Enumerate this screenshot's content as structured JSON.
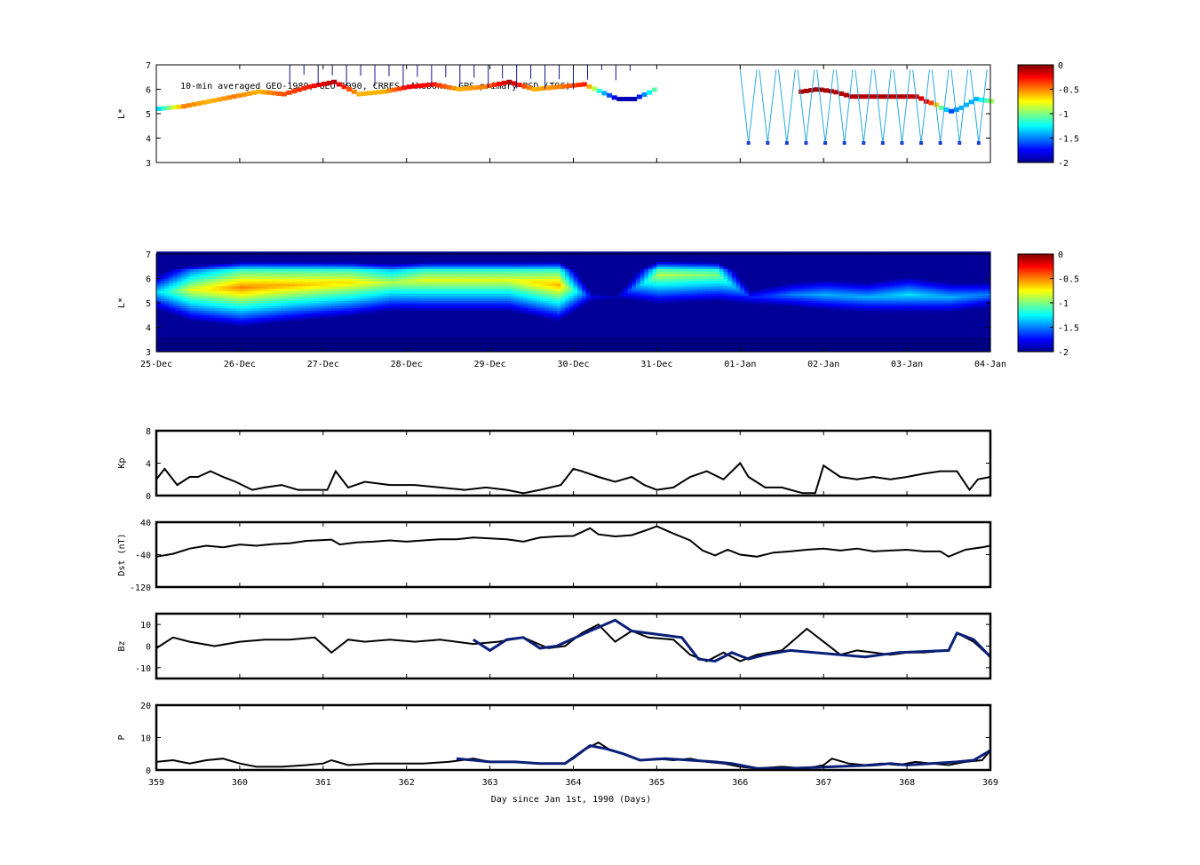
{
  "chart_data": [
    {
      "type": "heatmap",
      "panel": "observed_psd",
      "title": "10-min averaged GEO-1989, GEO-1990, CRRES, Akebono, GPS primary PSD (T96)",
      "ylabel": "L*",
      "ylim": [
        3,
        7
      ],
      "yticks": [
        "3",
        "4",
        "5",
        "6",
        "7"
      ],
      "colorbar": {
        "range": [
          -2,
          0
        ],
        "ticks": [
          "0",
          "-0.5",
          "-1",
          "-1.5",
          "-2"
        ]
      },
      "x_range_days": [
        359,
        369
      ],
      "tracks": [
        {
          "x": [
            359.0,
            359.3,
            359.6,
            359.9,
            360.2,
            360.5,
            360.8,
            361.1,
            361.4,
            361.7,
            362.0,
            362.3,
            362.6,
            362.9,
            363.2,
            363.5,
            363.8,
            364.1,
            364.3,
            364.5,
            364.7,
            364.9,
            365.0
          ],
          "y": [
            5.2,
            5.3,
            5.5,
            5.7,
            5.9,
            5.8,
            6.1,
            6.3,
            5.8,
            5.9,
            6.1,
            6.2,
            6.0,
            6.1,
            6.3,
            6.0,
            6.1,
            6.2,
            5.9,
            5.6,
            5.6,
            5.9,
            6.1
          ],
          "v": [
            -1.3,
            -0.5,
            -0.6,
            -0.5,
            -0.6,
            -0.4,
            -0.3,
            -0.1,
            -0.6,
            -0.6,
            -0.2,
            -0.3,
            -0.6,
            -0.5,
            -0.1,
            -0.6,
            -0.5,
            -0.3,
            -1.3,
            -1.9,
            -1.9,
            -1.2,
            -0.9
          ]
        },
        {
          "x": [
            366.7,
            366.9,
            367.1,
            367.3,
            367.6,
            367.9,
            368.1,
            368.2,
            368.3,
            368.4,
            368.5,
            368.6,
            368.8,
            369.0
          ],
          "y": [
            5.9,
            6.0,
            5.9,
            5.7,
            5.7,
            5.7,
            5.7,
            5.5,
            5.4,
            5.2,
            5.1,
            5.2,
            5.6,
            5.5
          ],
          "v": [
            -0.1,
            -0.05,
            -0.1,
            -0.1,
            -0.1,
            -0.1,
            -0.15,
            -0.2,
            -0.5,
            -1.2,
            -1.6,
            -1.4,
            -1.4,
            -0.9
          ]
        }
      ]
    },
    {
      "type": "heatmap",
      "panel": "reanalysis_psd",
      "ylabel": "L*",
      "ylim": [
        3,
        7
      ],
      "yticks": [
        "3",
        "4",
        "5",
        "6",
        "7"
      ],
      "xticks": [
        "25-Dec",
        "26-Dec",
        "27-Dec",
        "28-Dec",
        "29-Dec",
        "30-Dec",
        "31-Dec",
        "01-Jan",
        "02-Jan",
        "03-Jan",
        "04-Jan"
      ],
      "colorbar": {
        "range": [
          -2,
          0
        ],
        "ticks": [
          "0",
          "-0.5",
          "-1",
          "-1.5",
          "-2"
        ]
      },
      "bands": [
        {
          "x": [
            359.0,
            359.4,
            360.0,
            360.6,
            361.3,
            361.8,
            362.2,
            362.8,
            363.2,
            363.8,
            364.2,
            364.5,
            365.0,
            365.7,
            366.1,
            366.6,
            367.0,
            367.5,
            368.0,
            368.5,
            369.0
          ],
          "center_L": [
            5.4,
            5.5,
            5.6,
            5.7,
            5.8,
            5.8,
            5.9,
            5.9,
            5.9,
            5.7,
            5.2,
            5.2,
            6.1,
            6.1,
            5.2,
            5.3,
            5.3,
            5.2,
            5.3,
            5.2,
            5.3
          ],
          "peak": [
            -1.3,
            -0.8,
            -0.5,
            -0.6,
            -0.7,
            -0.9,
            -0.8,
            -0.8,
            -0.8,
            -0.6,
            -1.8,
            -1.9,
            -0.9,
            -1.0,
            -1.7,
            -1.5,
            -1.4,
            -1.4,
            -1.3,
            -1.4,
            -1.5
          ]
        }
      ]
    },
    {
      "type": "line",
      "panel": "kp",
      "ylabel": "Kp",
      "ylim": [
        0,
        8
      ],
      "yticks": [
        "0",
        "4",
        "8"
      ],
      "series": [
        {
          "x": [
            359.0,
            359.1,
            359.25,
            359.4,
            359.5,
            359.65,
            359.8,
            359.95,
            360.15,
            360.3,
            360.5,
            360.7,
            360.9,
            361.05,
            361.15,
            361.3,
            361.5,
            361.8,
            362.1,
            362.4,
            362.7,
            362.95,
            363.2,
            363.4,
            363.6,
            363.85,
            364.0,
            364.1,
            364.3,
            364.5,
            364.7,
            364.85,
            365.0,
            365.2,
            365.4,
            365.6,
            365.8,
            366.0,
            366.1,
            366.3,
            366.5,
            366.75,
            366.9,
            367.0,
            367.2,
            367.4,
            367.6,
            367.8,
            368.0,
            368.2,
            368.4,
            368.6,
            368.75,
            368.85,
            369.0
          ],
          "y": [
            2.0,
            3.3,
            1.3,
            2.3,
            2.3,
            3.0,
            2.3,
            1.7,
            0.7,
            1.0,
            1.3,
            0.7,
            0.7,
            0.7,
            3.0,
            1.0,
            1.7,
            1.3,
            1.3,
            1.0,
            0.7,
            1.0,
            0.7,
            0.3,
            0.7,
            1.3,
            3.3,
            3.0,
            2.3,
            1.7,
            2.3,
            1.3,
            0.7,
            1.0,
            2.3,
            3.0,
            2.0,
            4.0,
            2.3,
            1.0,
            1.0,
            0.3,
            0.3,
            3.7,
            2.3,
            2.0,
            2.3,
            2.0,
            2.3,
            2.7,
            3.0,
            3.0,
            0.7,
            2.0,
            2.3
          ]
        }
      ]
    },
    {
      "type": "line",
      "panel": "dst",
      "ylabel": "Dst (nT)",
      "ylim": [
        -120,
        40
      ],
      "yticks": [
        "-120",
        "-40",
        "40"
      ],
      "series": [
        {
          "x": [
            359.0,
            359.2,
            359.4,
            359.6,
            359.8,
            360.0,
            360.2,
            360.4,
            360.6,
            360.8,
            361.0,
            361.1,
            361.2,
            361.4,
            361.6,
            361.8,
            362.0,
            362.2,
            362.4,
            362.6,
            362.8,
            363.0,
            363.2,
            363.4,
            363.6,
            363.8,
            364.0,
            364.2,
            364.3,
            364.5,
            364.7,
            364.9,
            365.0,
            365.2,
            365.4,
            365.55,
            365.7,
            365.85,
            366.0,
            366.2,
            366.4,
            366.6,
            366.8,
            367.0,
            367.2,
            367.4,
            367.6,
            367.8,
            368.0,
            368.2,
            368.4,
            368.5,
            368.7,
            368.9,
            369.0
          ],
          "y": [
            -45,
            -38,
            -25,
            -18,
            -22,
            -15,
            -18,
            -14,
            -12,
            -6,
            -4,
            -3,
            -15,
            -10,
            -8,
            -5,
            -8,
            -5,
            -2,
            -2,
            2,
            0,
            -2,
            -8,
            2,
            5,
            6,
            25,
            10,
            5,
            8,
            22,
            30,
            12,
            -5,
            -30,
            -42,
            -28,
            -40,
            -45,
            -35,
            -32,
            -28,
            -25,
            -30,
            -25,
            -32,
            -30,
            -28,
            -32,
            -32,
            -45,
            -28,
            -22,
            -18
          ]
        }
      ]
    },
    {
      "type": "line",
      "panel": "bz",
      "ylabel": "Bz",
      "ylim": [
        -15,
        15
      ],
      "yticks": [
        "-10",
        "0",
        "10"
      ],
      "series": [
        {
          "x": [
            359.0,
            359.2,
            359.4,
            359.7,
            360.0,
            360.3,
            360.6,
            360.9,
            361.1,
            361.3,
            361.5,
            361.8,
            362.1,
            362.4,
            362.8,
            363.1,
            363.4,
            363.7,
            363.9,
            364.1,
            364.3,
            364.5,
            364.7,
            364.9,
            365.2,
            365.4,
            365.6,
            365.8,
            366.0,
            366.2,
            366.5,
            366.8,
            367.0,
            367.2,
            367.4,
            367.6,
            367.8,
            368.0,
            368.2,
            368.5,
            368.6,
            368.8,
            369.0
          ],
          "y": [
            -1,
            4,
            2,
            0,
            2,
            3,
            3,
            4,
            -3,
            3,
            2,
            3,
            2,
            3,
            1,
            2,
            4,
            -1,
            0,
            6,
            10,
            2,
            7,
            4,
            3,
            -4,
            -7,
            -3,
            -7,
            -4,
            -2,
            8,
            2,
            -4,
            -2,
            -3,
            -4,
            -3,
            -3,
            -2,
            6,
            2,
            -5
          ]
        },
        {
          "x": [
            362.8,
            363.0,
            363.2,
            363.4,
            363.6,
            363.8,
            364.2,
            364.5,
            364.7,
            365.3,
            365.5,
            365.7,
            365.9,
            366.1,
            366.3,
            366.6,
            367.5,
            367.7,
            367.9,
            368.5,
            368.6,
            368.8,
            369.0
          ],
          "y": [
            3,
            -2,
            3,
            4,
            -1,
            0,
            7,
            12,
            7,
            4,
            -6,
            -7,
            -3,
            -6,
            -4,
            -2,
            -5,
            -4,
            -3,
            -2,
            6,
            3,
            -5
          ]
        }
      ]
    },
    {
      "type": "line",
      "panel": "p",
      "ylabel": "P",
      "xlabel": "Day since Jan 1st, 1990 (Days)",
      "ylim": [
        0,
        20
      ],
      "yticks": [
        "0",
        "10",
        "20"
      ],
      "xticks": [
        "359",
        "360",
        "361",
        "362",
        "363",
        "364",
        "365",
        "366",
        "367",
        "368",
        "369"
      ],
      "series": [
        {
          "x": [
            359.0,
            359.2,
            359.4,
            359.6,
            359.8,
            360.0,
            360.2,
            360.5,
            360.8,
            361.0,
            361.1,
            361.3,
            361.6,
            361.9,
            362.2,
            362.5,
            362.8,
            363.0,
            363.3,
            363.6,
            363.9,
            364.0,
            364.15,
            364.3,
            364.45,
            364.6,
            364.8,
            365.0,
            365.2,
            365.4,
            365.6,
            365.8,
            366.0,
            366.2,
            366.5,
            366.8,
            367.0,
            367.1,
            367.3,
            367.5,
            367.7,
            367.9,
            368.1,
            368.3,
            368.5,
            368.7,
            368.9,
            369.0
          ],
          "y": [
            2.5,
            3.0,
            2.0,
            3.0,
            3.5,
            2.0,
            1.0,
            1.0,
            1.5,
            2.0,
            3.0,
            1.5,
            2.0,
            2.0,
            2.0,
            2.5,
            3.5,
            2.5,
            2.5,
            2.0,
            2.0,
            3.5,
            6.5,
            8.5,
            6.0,
            5.0,
            3.0,
            3.5,
            3.0,
            3.5,
            2.5,
            2.0,
            1.0,
            0.5,
            1.0,
            0.5,
            1.5,
            3.5,
            2.0,
            1.5,
            2.0,
            1.5,
            2.5,
            2.0,
            1.5,
            2.5,
            3.0,
            6.0
          ]
        },
        {
          "x": [
            362.6,
            362.8,
            363.0,
            363.3,
            363.6,
            363.9,
            364.2,
            364.4,
            364.6,
            364.8,
            365.1,
            365.4,
            365.7,
            365.9,
            366.2,
            366.6,
            367.6,
            367.8,
            368.0,
            368.6,
            368.8,
            369.0
          ],
          "y": [
            3.5,
            3.0,
            2.5,
            2.5,
            2.0,
            2.0,
            7.5,
            6.5,
            5.0,
            3.0,
            3.5,
            3.0,
            2.5,
            2.0,
            0.5,
            0.5,
            1.5,
            2.0,
            1.5,
            2.5,
            3.0,
            6.0
          ]
        }
      ]
    }
  ],
  "colors": {
    "line": "#000000",
    "imf_line": "#0a1f78",
    "background": "#ffffff",
    "colormap": "jet"
  }
}
